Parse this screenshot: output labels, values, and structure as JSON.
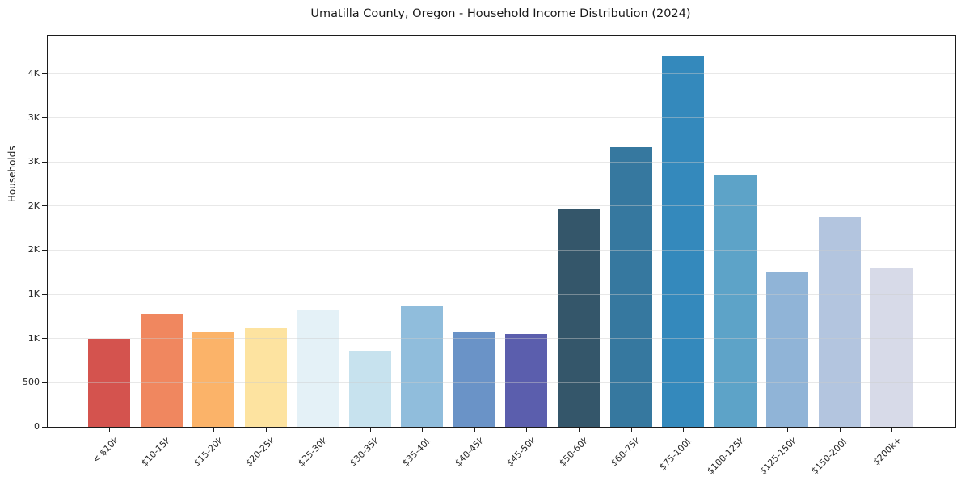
{
  "chart_data": {
    "type": "bar",
    "title": "Umatilla County, Oregon - Household Income Distribution (2024)",
    "xlabel": "",
    "ylabel": "Households",
    "legend_position": "none",
    "grid": "horizontal-light-over-bars",
    "background_color": "#ffffff",
    "spines": "full-box",
    "ylim": [
      0,
      4430
    ],
    "categories": [
      "< $10k",
      "$10-15k",
      "$15-20k",
      "$20-25k",
      "$25-30k",
      "$30-35k",
      "$35-40k",
      "$40-45k",
      "$45-50k",
      "$50-60k",
      "$60-75k",
      "$75-100k",
      "$100-125k",
      "$125-150k",
      "$150-200k",
      "$200k+"
    ],
    "values": [
      1000,
      1270,
      1070,
      1120,
      1320,
      860,
      1370,
      1075,
      1055,
      2465,
      3165,
      4200,
      2850,
      1755,
      2375,
      1795
    ],
    "bar_colors": [
      "#d4534e",
      "#f0875f",
      "#fbb369",
      "#fde3a0",
      "#e4f1f7",
      "#c7e2ee",
      "#90bddc",
      "#6a93c7",
      "#5b5ead",
      "#34566a",
      "#36789f",
      "#3489bc",
      "#5da3c8",
      "#90b4d7",
      "#b3c5df",
      "#d7dae8"
    ],
    "yticks": [
      {
        "value": 0,
        "label": "0"
      },
      {
        "value": 500,
        "label": "500"
      },
      {
        "value": 1000,
        "label": "1K"
      },
      {
        "value": 1500,
        "label": "1K"
      },
      {
        "value": 2000,
        "label": "2K"
      },
      {
        "value": 2500,
        "label": "2K"
      },
      {
        "value": 3000,
        "label": "3K"
      },
      {
        "value": 3500,
        "label": "3K"
      },
      {
        "value": 4000,
        "label": "4K"
      }
    ]
  }
}
